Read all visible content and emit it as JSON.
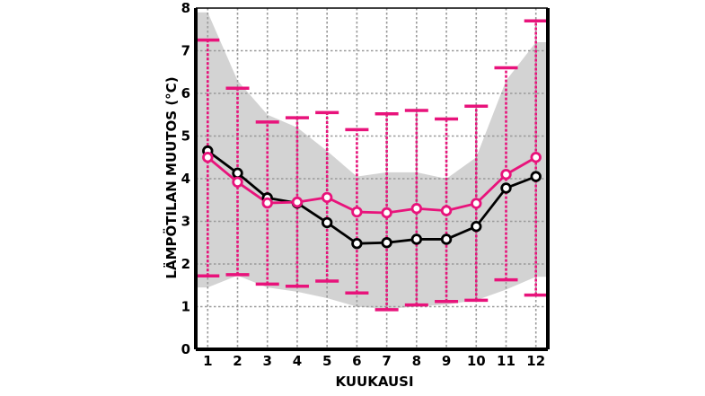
{
  "chart_data": {
    "type": "line",
    "title": "",
    "xlabel": "KUUKAUSI",
    "ylabel": "LÄMPÖTILAN MUUTOS (°C)",
    "x": [
      1,
      2,
      3,
      4,
      5,
      6,
      7,
      8,
      9,
      10,
      11,
      12
    ],
    "xlim": [
      0.6,
      12.4
    ],
    "ylim": [
      0,
      8
    ],
    "yticks": [
      0,
      1,
      2,
      3,
      4,
      5,
      6,
      7,
      8
    ],
    "grid": true,
    "legend": "none",
    "series": [
      {
        "color": "#000000",
        "values": [
          4.65,
          4.13,
          3.55,
          3.43,
          2.97,
          2.48,
          2.5,
          2.58,
          2.58,
          2.88,
          3.78,
          4.05
        ]
      },
      {
        "color": "#e8137b",
        "values": [
          4.5,
          3.92,
          3.43,
          3.45,
          3.56,
          3.22,
          3.2,
          3.3,
          3.25,
          3.42,
          4.1,
          4.5
        ],
        "error_low": [
          1.72,
          1.75,
          1.53,
          1.48,
          1.6,
          1.32,
          0.93,
          1.04,
          1.12,
          1.15,
          1.63,
          1.27
        ],
        "error_high": [
          7.25,
          6.12,
          5.33,
          5.43,
          5.55,
          5.15,
          5.52,
          5.6,
          5.4,
          5.7,
          6.6,
          7.7
        ]
      }
    ],
    "band": {
      "color": "#d3d3d3",
      "lower": [
        1.45,
        1.73,
        1.45,
        1.35,
        1.2,
        1.0,
        0.95,
        1.0,
        1.05,
        1.15,
        1.4,
        1.7
      ],
      "upper": [
        7.9,
        6.3,
        5.5,
        5.2,
        4.65,
        4.05,
        4.15,
        4.15,
        4.0,
        4.5,
        6.3,
        7.2
      ]
    }
  }
}
